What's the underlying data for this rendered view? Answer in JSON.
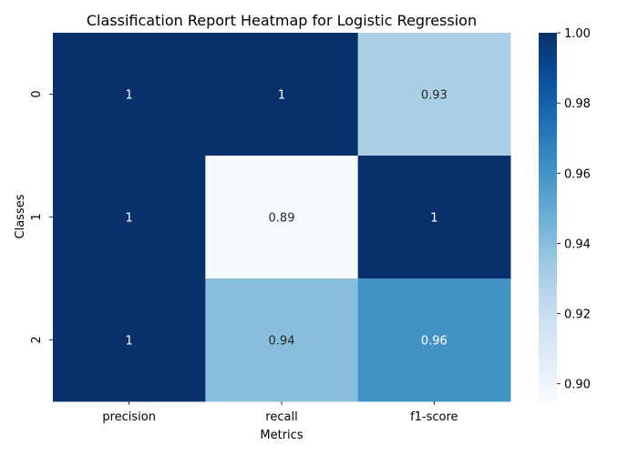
{
  "chart_data": {
    "type": "heatmap",
    "title": "Classification Report Heatmap for Logistic Regression",
    "xlabel": "Metrics",
    "ylabel": "Classes",
    "x_categories": [
      "precision",
      "recall",
      "f1-score"
    ],
    "y_categories": [
      "0",
      "1",
      "2"
    ],
    "values": [
      [
        1.0,
        1.0,
        0.93
      ],
      [
        1.0,
        0.89,
        1.0
      ],
      [
        1.0,
        0.94,
        0.96
      ]
    ],
    "annotations": [
      [
        "1",
        "1",
        "0.93"
      ],
      [
        "1",
        "0.89",
        "1"
      ],
      [
        "1",
        "0.94",
        "0.96"
      ]
    ],
    "colormap": "Blues",
    "vmin": 0.895,
    "vmax": 1.0,
    "colorbar_ticks": [
      "0.90",
      "0.92",
      "0.94",
      "0.96",
      "0.98",
      "1.00"
    ],
    "colorbar_tick_values": [
      0.9,
      0.92,
      0.94,
      0.96,
      0.98,
      1.0
    ],
    "dark_text_color": "#262626",
    "light_text_color": "#ffffff"
  }
}
